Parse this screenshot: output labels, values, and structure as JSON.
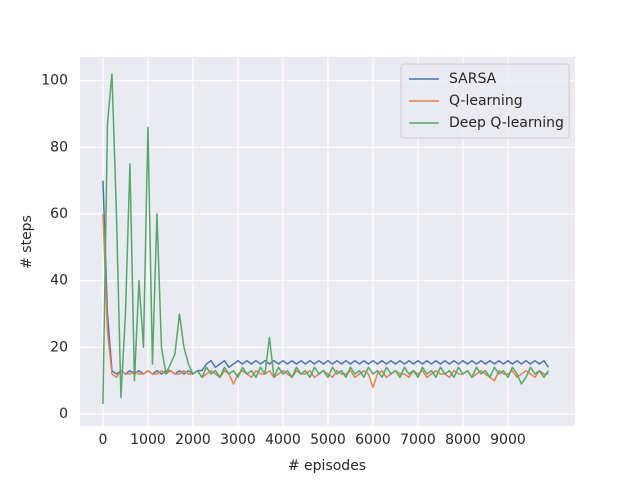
{
  "chart_data": {
    "type": "line",
    "xlabel": "# episodes",
    "ylabel": "# steps",
    "x": [
      0,
      100,
      200,
      300,
      400,
      500,
      600,
      700,
      800,
      900,
      1000,
      1100,
      1200,
      1300,
      1400,
      1500,
      1600,
      1700,
      1800,
      1900,
      2000,
      2100,
      2200,
      2300,
      2400,
      2500,
      2600,
      2700,
      2800,
      2900,
      3000,
      3100,
      3200,
      3300,
      3400,
      3500,
      3600,
      3700,
      3800,
      3900,
      4000,
      4100,
      4200,
      4300,
      4400,
      4500,
      4600,
      4700,
      4800,
      4900,
      5000,
      5100,
      5200,
      5300,
      5400,
      5500,
      5600,
      5700,
      5800,
      5900,
      6000,
      6100,
      6200,
      6300,
      6400,
      6500,
      6600,
      6700,
      6800,
      6900,
      7000,
      7100,
      7200,
      7300,
      7400,
      7500,
      7600,
      7700,
      7800,
      7900,
      8000,
      8100,
      8200,
      8300,
      8400,
      8500,
      8600,
      8700,
      8800,
      8900,
      9000,
      9100,
      9200,
      9300,
      9400,
      9500,
      9600,
      9700,
      9800,
      9900
    ],
    "series": [
      {
        "name": "SARSA",
        "color": "#4c72b0",
        "values": [
          70,
          30,
          13,
          12,
          13,
          12,
          13,
          12,
          13,
          12,
          13,
          12,
          13,
          12,
          13,
          13,
          12,
          13,
          12,
          13,
          12,
          13,
          13,
          15,
          16,
          14,
          15,
          16,
          14,
          15,
          16,
          15,
          16,
          15,
          16,
          15,
          16,
          15,
          16,
          15,
          16,
          15,
          16,
          15,
          16,
          15,
          16,
          15,
          16,
          15,
          16,
          15,
          16,
          15,
          16,
          15,
          16,
          15,
          16,
          15,
          16,
          15,
          16,
          15,
          16,
          15,
          16,
          15,
          16,
          15,
          16,
          15,
          16,
          15,
          16,
          15,
          16,
          15,
          16,
          15,
          16,
          15,
          16,
          15,
          16,
          15,
          16,
          15,
          16,
          15,
          16,
          15,
          16,
          15,
          16,
          15,
          16,
          15,
          16,
          14
        ]
      },
      {
        "name": "Q-learning",
        "color": "#dd8452",
        "values": [
          60,
          25,
          12,
          11,
          13,
          12,
          12,
          13,
          12,
          12,
          13,
          12,
          12,
          13,
          12,
          13,
          12,
          12,
          13,
          12,
          12,
          13,
          11,
          12,
          13,
          12,
          11,
          13,
          12,
          9,
          12,
          13,
          12,
          11,
          13,
          12,
          12,
          13,
          11,
          12,
          13,
          12,
          11,
          13,
          12,
          12,
          13,
          11,
          12,
          13,
          12,
          11,
          13,
          12,
          12,
          13,
          11,
          12,
          13,
          12,
          8,
          12,
          13,
          11,
          12,
          13,
          12,
          12,
          11,
          13,
          12,
          13,
          11,
          12,
          13,
          12,
          12,
          11,
          13,
          12,
          12,
          13,
          11,
          12,
          13,
          12,
          11,
          10,
          13,
          12,
          12,
          13,
          11,
          12,
          13,
          12,
          11,
          13,
          12,
          12
        ]
      },
      {
        "name": "Deep Q-learning",
        "color": "#55a868",
        "values": [
          3,
          87,
          102,
          60,
          5,
          30,
          75,
          10,
          40,
          20,
          86,
          15,
          60,
          20,
          12,
          15,
          18,
          30,
          20,
          15,
          12,
          13,
          11,
          14,
          12,
          13,
          11,
          14,
          12,
          13,
          11,
          14,
          12,
          13,
          11,
          14,
          12,
          23,
          11,
          14,
          12,
          13,
          11,
          14,
          12,
          13,
          11,
          14,
          12,
          13,
          11,
          14,
          12,
          13,
          11,
          14,
          12,
          13,
          11,
          14,
          12,
          13,
          11,
          14,
          12,
          13,
          11,
          14,
          12,
          13,
          11,
          14,
          12,
          13,
          11,
          14,
          12,
          13,
          11,
          14,
          12,
          13,
          11,
          14,
          12,
          13,
          11,
          14,
          12,
          13,
          11,
          14,
          12,
          9,
          11,
          14,
          12,
          13,
          11,
          13
        ]
      }
    ],
    "xlim": [
      -510,
      10490
    ],
    "ylim": [
      -3.6,
      107.1
    ],
    "xticks": [
      0,
      1000,
      2000,
      3000,
      4000,
      5000,
      6000,
      7000,
      8000,
      9000
    ],
    "yticks": [
      0,
      20,
      40,
      60,
      80,
      100
    ],
    "grid": true,
    "legend": "upper right"
  }
}
